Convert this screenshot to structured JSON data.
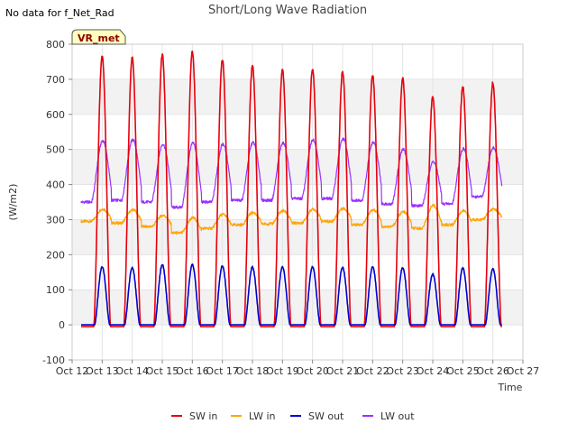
{
  "header": {
    "nodata_label": "No data for f_Net_Rad"
  },
  "badge": {
    "label": "VR_met"
  },
  "chart_data": {
    "type": "line",
    "title": "Short/Long Wave Radiation",
    "xlabel": "Time",
    "ylabel": "(W/m2)",
    "xlim": [
      12,
      27
    ],
    "ylim": [
      -100,
      800
    ],
    "x_ticks": [
      {
        "v": 12,
        "label": "Oct 12"
      },
      {
        "v": 13,
        "label": "Oct 13"
      },
      {
        "v": 14,
        "label": "Oct 14"
      },
      {
        "v": 15,
        "label": "Oct 15"
      },
      {
        "v": 16,
        "label": "Oct 16"
      },
      {
        "v": 17,
        "label": "Oct 17"
      },
      {
        "v": 18,
        "label": "Oct 18"
      },
      {
        "v": 19,
        "label": "Oct 19"
      },
      {
        "v": 20,
        "label": "Oct 20"
      },
      {
        "v": 21,
        "label": "Oct 21"
      },
      {
        "v": 22,
        "label": "Oct 22"
      },
      {
        "v": 23,
        "label": "Oct 23"
      },
      {
        "v": 24,
        "label": "Oct 24"
      },
      {
        "v": 25,
        "label": "Oct 25"
      },
      {
        "v": 26,
        "label": "Oct 26"
      },
      {
        "v": 27,
        "label": "Oct 27"
      }
    ],
    "y_ticks": [
      {
        "v": -100,
        "label": "-100"
      },
      {
        "v": 0,
        "label": "0"
      },
      {
        "v": 100,
        "label": "100"
      },
      {
        "v": 200,
        "label": "200"
      },
      {
        "v": 300,
        "label": "300"
      },
      {
        "v": 400,
        "label": "400"
      },
      {
        "v": 500,
        "label": "500"
      },
      {
        "v": 600,
        "label": "600"
      },
      {
        "v": 700,
        "label": "700"
      },
      {
        "v": 800,
        "label": "800"
      }
    ],
    "day_start": 12.3,
    "day_end": 26.3,
    "solar_noon_offset": 0.8,
    "day_half_width": 0.28,
    "series": [
      {
        "name": "SW in",
        "color": "#e8000b",
        "key": "sw_in",
        "night_value": -5,
        "daily_peaks": [
          765,
          762,
          770,
          778,
          757,
          740,
          728,
          730,
          722,
          712,
          703,
          650,
          680,
          690
        ]
      },
      {
        "name": "LW in",
        "color": "#ffa500",
        "key": "lw_in",
        "night_base": [
          295,
          290,
          280,
          262,
          275,
          285,
          288,
          290,
          295,
          285,
          280,
          275,
          285,
          300
        ],
        "daily_peaks": [
          330,
          328,
          312,
          305,
          315,
          320,
          325,
          330,
          332,
          328,
          322,
          340,
          325,
          330
        ]
      },
      {
        "name": "SW out",
        "color": "#0000cd",
        "key": "sw_out",
        "night_value": 0,
        "daily_peaks": [
          165,
          163,
          172,
          172,
          168,
          165,
          165,
          165,
          165,
          165,
          163,
          145,
          162,
          160
        ]
      },
      {
        "name": "LW out",
        "color": "#9b30ff",
        "key": "lw_out",
        "night_base": [
          350,
          355,
          350,
          335,
          350,
          355,
          355,
          360,
          360,
          355,
          345,
          340,
          345,
          365
        ],
        "daily_peaks": [
          525,
          528,
          515,
          518,
          515,
          520,
          518,
          528,
          530,
          520,
          500,
          465,
          502,
          505
        ]
      }
    ]
  },
  "legend": {
    "items": [
      {
        "label": "SW in",
        "color": "#e8000b"
      },
      {
        "label": "LW in",
        "color": "#ffa500"
      },
      {
        "label": "SW out",
        "color": "#0000cd"
      },
      {
        "label": "LW out",
        "color": "#9b30ff"
      }
    ]
  }
}
